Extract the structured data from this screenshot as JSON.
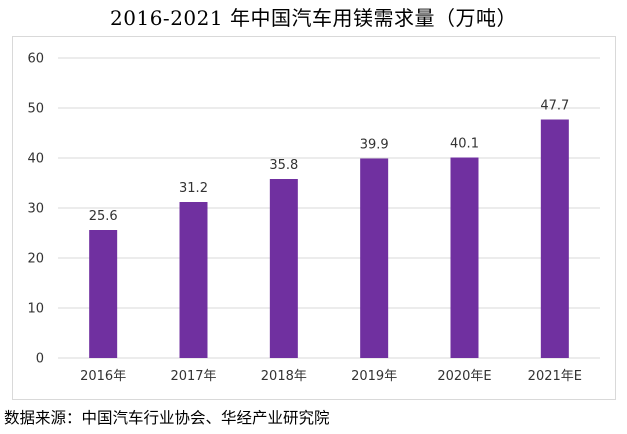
{
  "title": "2016-2021 年中国汽车用镁需求量（万吨）",
  "source": "数据来源：中国汽车行业协会、华经产业研究院",
  "chart_data": {
    "type": "bar",
    "title": "2016-2021 年中国汽车用镁需求量（万吨）",
    "categories": [
      "2016年",
      "2017年",
      "2018年",
      "2019年",
      "2020年E",
      "2021年E"
    ],
    "values": [
      25.6,
      31.2,
      35.8,
      39.9,
      40.1,
      47.7
    ],
    "data_labels": [
      "25.6",
      "31.2",
      "35.8",
      "39.9",
      "40.1",
      "47.7"
    ],
    "y_ticks": [
      "0",
      "10",
      "20",
      "30",
      "40",
      "50",
      "60"
    ],
    "ylim": [
      0,
      60
    ],
    "xlabel": "",
    "ylabel": "",
    "grid": true,
    "legend": "none",
    "bar_color": "#7030a0",
    "grid_color": "#d9d9d9"
  }
}
